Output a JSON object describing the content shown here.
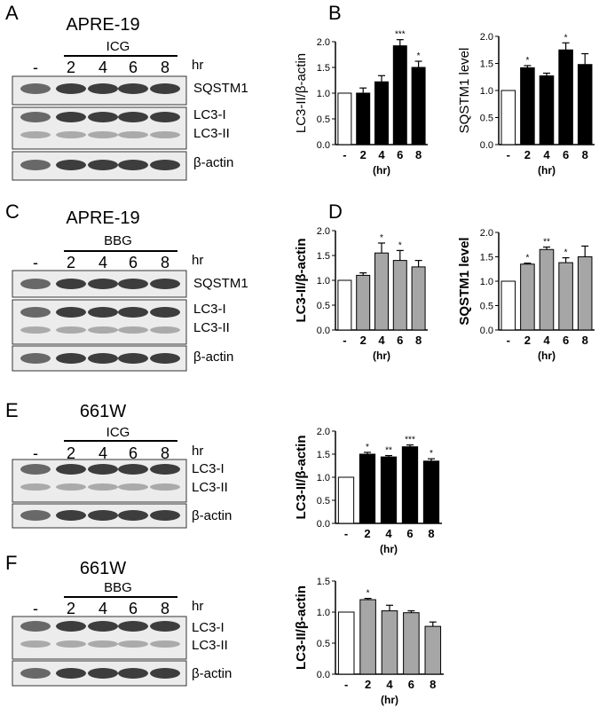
{
  "panels": [
    {
      "letter": "A",
      "cell_line": "APRE-19",
      "treatment": "ICG",
      "time_labels": [
        "-",
        "2",
        "4",
        "6",
        "8"
      ],
      "time_unit": "hr",
      "bands": [
        "SQSTM1",
        "LC3-I",
        "LC3-II",
        "β-actin"
      ]
    },
    {
      "letter": "C",
      "cell_line": "APRE-19",
      "treatment": "BBG",
      "time_labels": [
        "-",
        "2",
        "4",
        "6",
        "8"
      ],
      "time_unit": "hr",
      "bands": [
        "SQSTM1",
        "LC3-I",
        "LC3-II",
        "β-actin"
      ]
    },
    {
      "letter": "E",
      "cell_line": "661W",
      "treatment": "ICG",
      "time_labels": [
        "-",
        "2",
        "4",
        "6",
        "8"
      ],
      "time_unit": "hr",
      "bands": [
        "LC3-I",
        "LC3-II",
        "β-actin"
      ]
    },
    {
      "letter": "F",
      "cell_line": "661W",
      "treatment": "BBG",
      "time_labels": [
        "-",
        "2",
        "4",
        "6",
        "8"
      ],
      "time_unit": "hr",
      "bands": [
        "LC3-I",
        "LC3-II",
        "β-actin"
      ]
    }
  ],
  "chart_data": [
    {
      "panel": "B",
      "type": "bar",
      "categories": [
        "-",
        "2",
        "4",
        "6",
        "8"
      ],
      "values": [
        1.0,
        1.0,
        1.22,
        1.92,
        1.5
      ],
      "errors": [
        0,
        0.1,
        0.12,
        0.12,
        0.12
      ],
      "significance": [
        "",
        "",
        "",
        "***",
        "*"
      ],
      "bar_colors": [
        "#ffffff",
        "#000000",
        "#000000",
        "#000000",
        "#000000"
      ],
      "ylabel": "LC3-II/β-actin",
      "xlabel": "(hr)",
      "ylim": [
        0,
        2.0
      ],
      "yticks": [
        "0.0",
        "0.5",
        "1.0",
        "1.5",
        "2.0"
      ]
    },
    {
      "panel": "B",
      "type": "bar",
      "categories": [
        "-",
        "2",
        "4",
        "6",
        "8"
      ],
      "values": [
        1.0,
        1.42,
        1.27,
        1.75,
        1.48
      ],
      "errors": [
        0,
        0.04,
        0.05,
        0.13,
        0.2
      ],
      "significance": [
        "",
        "*",
        "",
        "*",
        ""
      ],
      "bar_colors": [
        "#ffffff",
        "#000000",
        "#000000",
        "#000000",
        "#000000"
      ],
      "ylabel": "SQSTM1 level",
      "xlabel": "(hr)",
      "ylim": [
        0,
        2.0
      ],
      "yticks": [
        "0.0",
        "0.5",
        "1.0",
        "1.5",
        "2.0"
      ]
    },
    {
      "panel": "D",
      "type": "bar",
      "categories": [
        "-",
        "2",
        "4",
        "6",
        "8"
      ],
      "values": [
        1.0,
        1.1,
        1.55,
        1.4,
        1.27
      ],
      "errors": [
        0,
        0.05,
        0.2,
        0.2,
        0.13
      ],
      "significance": [
        "",
        "",
        "*",
        "*",
        ""
      ],
      "bar_colors": [
        "#ffffff",
        "#a6a6a6",
        "#a6a6a6",
        "#a6a6a6",
        "#a6a6a6"
      ],
      "ylabel": "LC3-II/β-actin",
      "xlabel": "(hr)",
      "ylim": [
        0,
        2.0
      ],
      "yticks": [
        "0.0",
        "0.5",
        "1.0",
        "1.5",
        "2.0"
      ]
    },
    {
      "panel": "D",
      "type": "bar",
      "categories": [
        "-",
        "2",
        "4",
        "6",
        "8"
      ],
      "values": [
        1.0,
        1.35,
        1.65,
        1.38,
        1.5
      ],
      "errors": [
        0,
        0.02,
        0.05,
        0.1,
        0.22
      ],
      "significance": [
        "",
        "*",
        "**",
        "*",
        ""
      ],
      "bar_colors": [
        "#ffffff",
        "#a6a6a6",
        "#a6a6a6",
        "#a6a6a6",
        "#a6a6a6"
      ],
      "ylabel": "SQSTM1 level",
      "xlabel": "(hr)",
      "ylim": [
        0,
        2.0
      ],
      "yticks": [
        "0.0",
        "0.5",
        "1.0",
        "1.5",
        "2.0"
      ]
    },
    {
      "panel": "E",
      "type": "bar",
      "categories": [
        "-",
        "2",
        "4",
        "6",
        "8"
      ],
      "values": [
        1.0,
        1.5,
        1.44,
        1.66,
        1.35
      ],
      "errors": [
        0,
        0.04,
        0.03,
        0.04,
        0.05
      ],
      "significance": [
        "",
        "*",
        "**",
        "***",
        "*"
      ],
      "bar_colors": [
        "#ffffff",
        "#000000",
        "#000000",
        "#000000",
        "#000000"
      ],
      "ylabel": "LC3-II/β-actin",
      "xlabel": "(hr)",
      "ylim": [
        0,
        2.0
      ],
      "yticks": [
        "0.0",
        "0.5",
        "1.0",
        "1.5",
        "2.0"
      ]
    },
    {
      "panel": "F",
      "type": "bar",
      "categories": [
        "-",
        "2",
        "4",
        "6",
        "8"
      ],
      "values": [
        1.0,
        1.2,
        1.02,
        0.99,
        0.77
      ],
      "errors": [
        0,
        0.02,
        0.09,
        0.03,
        0.07
      ],
      "significance": [
        "",
        "*",
        "",
        "",
        ""
      ],
      "bar_colors": [
        "#ffffff",
        "#a6a6a6",
        "#a6a6a6",
        "#a6a6a6",
        "#a6a6a6"
      ],
      "ylabel": "LC3-II/β-actin",
      "xlabel": "(hr)",
      "ylim": [
        0,
        1.5
      ],
      "yticks": [
        "0.0",
        "0.5",
        "1.0",
        "1.5"
      ]
    }
  ]
}
